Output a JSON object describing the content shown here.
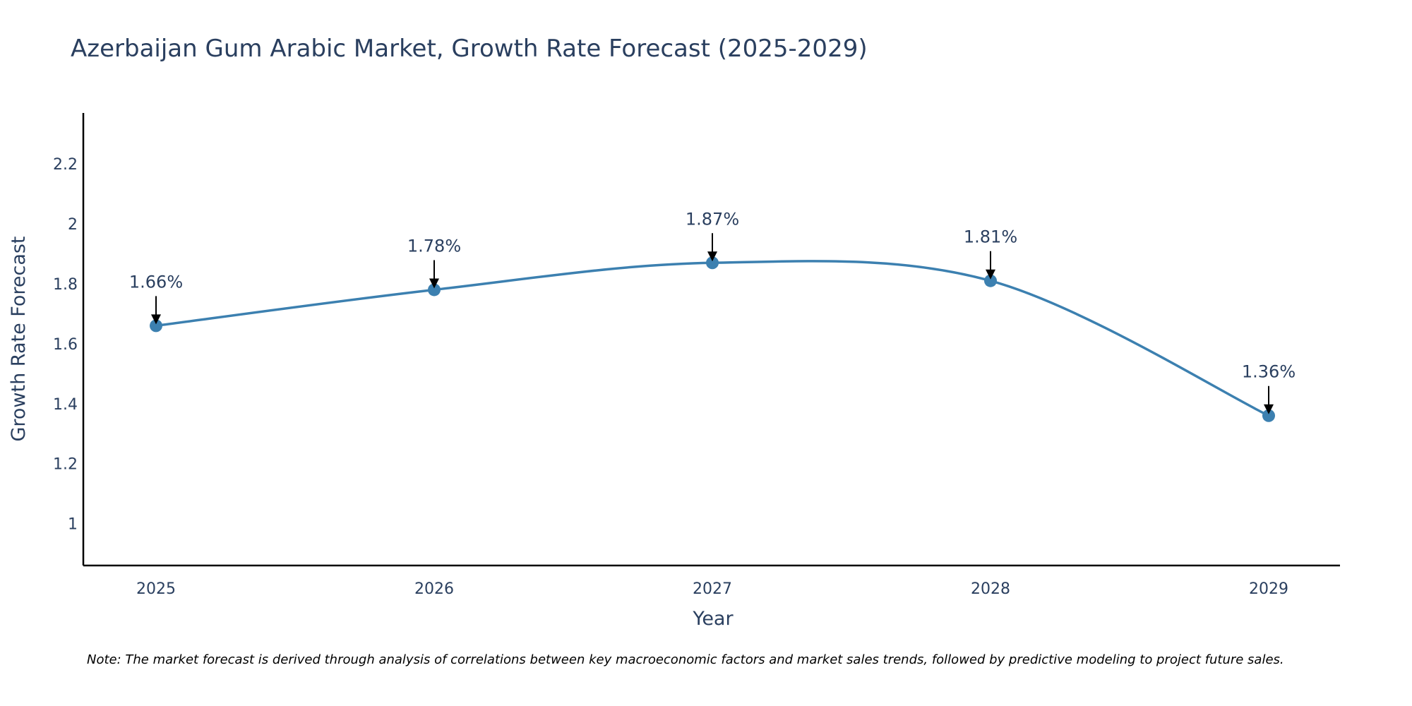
{
  "chart_data": {
    "type": "line",
    "title": "Azerbaijan Gum Arabic Market, Growth Rate Forecast (2025-2029)",
    "xlabel": "Year",
    "ylabel": "Growth Rate Forecast",
    "categories": [
      "2025",
      "2026",
      "2027",
      "2028",
      "2029"
    ],
    "series": [
      {
        "name": "Growth Rate Forecast",
        "values": [
          1.66,
          1.78,
          1.87,
          1.81,
          1.36
        ]
      }
    ],
    "data_labels": [
      "1.66%",
      "1.78%",
      "1.87%",
      "1.81%",
      "1.36%"
    ],
    "yticks": [
      1,
      1.2,
      1.4,
      1.6,
      1.8,
      2,
      2.2
    ],
    "ytick_labels": [
      "1",
      "1.2",
      "1.4",
      "1.6",
      "1.8",
      "2",
      "2.2"
    ],
    "ylim": [
      0.86,
      2.37
    ],
    "grid": false,
    "line_color": "#3c80b0",
    "note": "Note: The market forecast is derived through analysis of correlations between key macroeconomic factors and market sales trends, followed by predictive modeling to project future sales."
  }
}
